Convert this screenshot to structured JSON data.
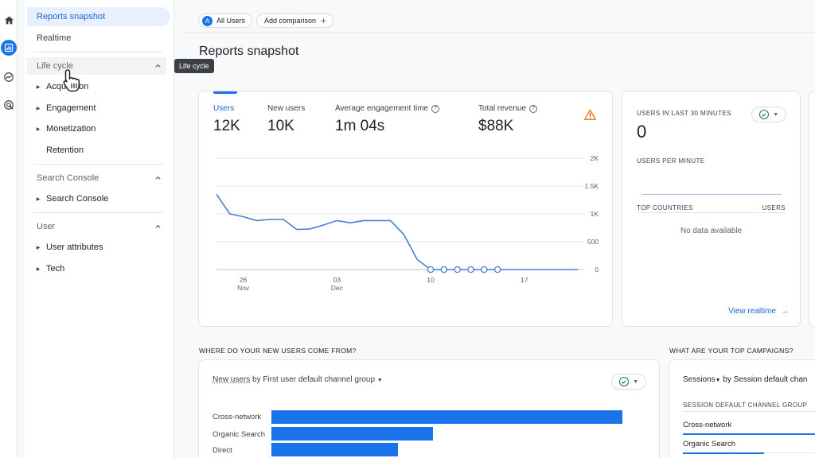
{
  "rail": {
    "icons": [
      "home-icon",
      "reports-icon",
      "explore-icon",
      "advertising-icon"
    ]
  },
  "sidebar": {
    "top_items": [
      {
        "label": "Reports snapshot",
        "active": true
      },
      {
        "label": "Realtime",
        "active": false
      }
    ],
    "sections": [
      {
        "title": "Life cycle",
        "items": [
          "Acquisition",
          "Engagement",
          "Monetization",
          "Retention"
        ]
      },
      {
        "title": "Search Console",
        "items": [
          "Search Console"
        ]
      },
      {
        "title": "User",
        "items": [
          "User attributes",
          "Tech"
        ]
      }
    ],
    "tooltip": "Life cycle"
  },
  "header": {
    "audience_chip": {
      "avatar": "A",
      "label": "All Users"
    },
    "comparison_chip": "Add comparison",
    "page_title": "Reports snapshot"
  },
  "overview": {
    "metrics": [
      {
        "label": "Users",
        "value": "12K",
        "active": true,
        "help": false
      },
      {
        "label": "New users",
        "value": "10K",
        "active": false,
        "help": false
      },
      {
        "label": "Average engagement time",
        "value": "1m 04s",
        "active": false,
        "help": true
      },
      {
        "label": "Total revenue",
        "value": "$88K",
        "active": false,
        "help": true
      }
    ],
    "warning_icon": "warning-icon"
  },
  "chart_data": {
    "type": "line",
    "series": [
      {
        "values": [
          1.35,
          1.0,
          0.95,
          0.88,
          0.9,
          0.9,
          0.72,
          0.73,
          0.8,
          0.88,
          0.84,
          0.88,
          0.88,
          0.88,
          0.63,
          0.18,
          0.0,
          0.0,
          0.0,
          0.0,
          0.0,
          0.0,
          0.0,
          0.0,
          0.0,
          0.0,
          0.0,
          0.0
        ]
      }
    ],
    "x_ticks": [
      {
        "line1": "26",
        "line2": "Nov"
      },
      {
        "line1": "03",
        "line2": "Dec"
      },
      {
        "line1": "10",
        "line2": ""
      },
      {
        "line1": "17",
        "line2": ""
      }
    ],
    "y_ticks": [
      "2K",
      "1.5K",
      "1K",
      "500",
      "0"
    ],
    "ylim": [
      0,
      2
    ],
    "y_unit": "K",
    "grid": true,
    "color": "#4a7fd0"
  },
  "realtime": {
    "users_label": "USERS IN LAST 30 MINUTES",
    "users_value": "0",
    "per_minute_label": "USERS PER MINUTE",
    "col1": "TOP COUNTRIES",
    "col2": "USERS",
    "empty": "No data available",
    "link": "View realtime"
  },
  "new_users": {
    "section_title": "WHERE DO YOUR NEW USERS COME FROM?",
    "metric_link": "New users",
    "by_text": "by First user default channel group",
    "bars": [
      {
        "label": "Cross-network",
        "value": 1.0
      },
      {
        "label": "Organic Search",
        "value": 0.46
      },
      {
        "label": "Direct",
        "value": 0.36
      }
    ]
  },
  "campaigns": {
    "section_title": "WHAT ARE YOUR TOP CAMPAIGNS?",
    "metric": "Sessions",
    "by_text": "by Session default chan",
    "col_head": "SESSION DEFAULT CHANNEL GROUP",
    "rows": [
      {
        "label": "Cross-network",
        "value": 1.0
      },
      {
        "label": "Organic Search",
        "value": 0.56
      }
    ]
  },
  "colors": {
    "accent": "#1a73e8",
    "active_bg": "#e8f0fe",
    "positive": "#188038",
    "warning": "#e37400"
  }
}
